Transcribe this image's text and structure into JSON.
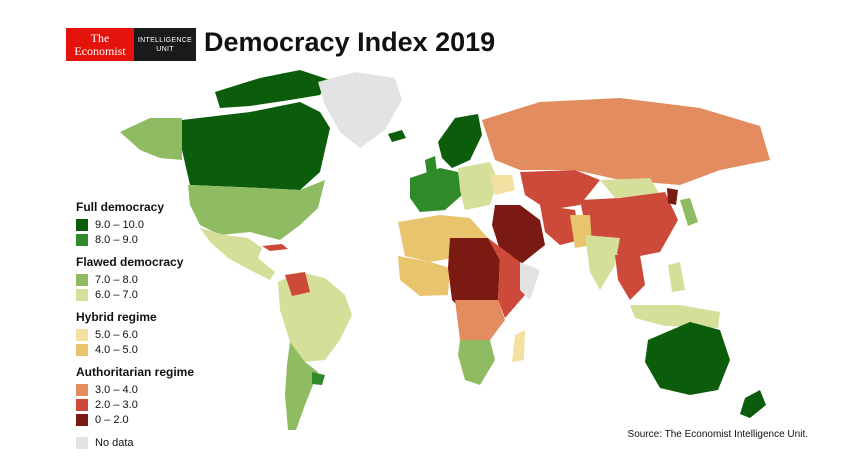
{
  "header": {
    "logo_line1": "The",
    "logo_line2": "Economist",
    "unit_line1": "INTELLIGENCE",
    "unit_line2": "UNIT",
    "title": "Democracy Index 2019"
  },
  "legend": {
    "groups": [
      {
        "heading": "Full democracy",
        "items": [
          {
            "label": "9.0 – 10.0",
            "color": "#0b5d0b"
          },
          {
            "label": "8.0 – 9.0",
            "color": "#2f8a2a"
          }
        ]
      },
      {
        "heading": "Flawed democracy",
        "items": [
          {
            "label": "7.0 – 8.0",
            "color": "#8fbb63"
          },
          {
            "label": "6.0 – 7.0",
            "color": "#d5df9a"
          }
        ]
      },
      {
        "heading": "Hybrid regime",
        "items": [
          {
            "label": "5.0 – 6.0",
            "color": "#f4e1a2"
          },
          {
            "label": "4.0 – 5.0",
            "color": "#e8c46d"
          }
        ]
      },
      {
        "heading": "Authoritarian regime",
        "items": [
          {
            "label": "3.0 – 4.0",
            "color": "#e38c5f"
          },
          {
            "label": "2.0 – 3.0",
            "color": "#cd4a3a"
          },
          {
            "label": "0 – 2.0",
            "color": "#7b1a12"
          }
        ]
      }
    ],
    "no_data": {
      "label": "No data",
      "color": "#e3e3e3"
    }
  },
  "source": "Source: The Economist Intelligence Unit."
}
